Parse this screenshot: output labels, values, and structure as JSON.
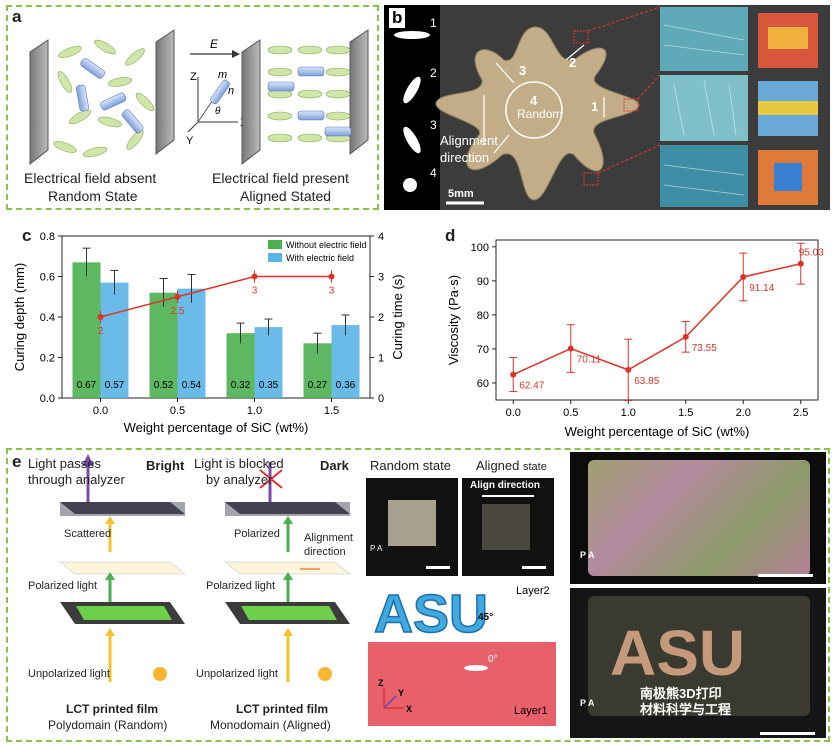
{
  "panel_a": {
    "label": "a",
    "left_caption_1": "Electrical field absent",
    "left_caption_2": "Random State",
    "right_caption_1": "Electrical field present",
    "right_caption_2": "Aligned Stated",
    "field_symbol": "E",
    "axis_z": "Z",
    "axis_x": "X",
    "axis_y": "Y",
    "vec_m": "m",
    "vec_n": "n",
    "theta": "θ"
  },
  "panel_b": {
    "label": "b",
    "shape_nums": [
      "1",
      "2",
      "3",
      "4"
    ],
    "region_1": "1",
    "region_2": "2",
    "region_3": "3",
    "region_4": "4",
    "random": "Random",
    "alignment_1": "Alignment",
    "alignment_2": "direction",
    "scale": "5mm"
  },
  "panel_c": {
    "label": "c",
    "legend_1": "Without electric field",
    "legend_2": "With electric field",
    "ylabel_left": "Curing depth (mm)",
    "ylabel_right": "Curing time (s)",
    "xlabel": "Weight percentage of SiC (wt%)"
  },
  "panel_d": {
    "label": "d",
    "ylabel": "Viscosity (Pa·s)",
    "xlabel": "Weight percentage of SiC (wt%)"
  },
  "panel_e": {
    "label": "e",
    "light_passes_1": "Light passes",
    "light_passes_2": "through analyzer",
    "bright": "Bright",
    "light_blocked_1": "Light is blocked",
    "light_blocked_2": "by analyzer",
    "dark": "Dark",
    "scattered": "Scattered",
    "polarized": "Polarized",
    "alignment_1": "Alignment",
    "alignment_2": "direction",
    "polarized_light_1": "Polarized light",
    "polarized_light_2": "Polarized light",
    "unpolarized_1": "Unpolarized light",
    "unpolarized_2": "Unpolarized light",
    "film_1_title": "LCT printed film",
    "film_1_sub": "Polydomain (Random)",
    "film_2_title": "LCT printed film",
    "film_2_sub": "Monodomain (Aligned)",
    "random_state": "Random state",
    "aligned_state_1": "Aligned",
    "aligned_state_2": "state",
    "align_direction": "Align direction",
    "p": "P",
    "a": "A",
    "asu": "ASU",
    "layer2": "Layer2",
    "layer1": "Layer1",
    "deg45": "45°",
    "deg0": "0°",
    "ax_z": "Z",
    "ax_y": "Y",
    "ax_x": "X",
    "watermark_1": "南极熊3D打印",
    "watermark_2": "材料科学与工程"
  },
  "chart_data": [
    {
      "type": "bar",
      "title": "",
      "categories": [
        "0.0",
        "0.5",
        "1.0",
        "1.5"
      ],
      "series": [
        {
          "name": "Without electric field",
          "values": [
            0.67,
            0.52,
            0.32,
            0.27
          ],
          "errors": [
            0.07,
            0.07,
            0.05,
            0.05
          ],
          "color": "#4caf50"
        },
        {
          "name": "With electric field",
          "values": [
            0.57,
            0.54,
            0.35,
            0.36
          ],
          "errors": [
            0.06,
            0.07,
            0.04,
            0.05
          ],
          "color": "#5ab4e5"
        }
      ],
      "line_series": {
        "name": "Curing time",
        "values": [
          2,
          2.5,
          3,
          3
        ],
        "errors": [
          0.15,
          0.15,
          0.15,
          0.15
        ],
        "color": "#d9352b",
        "axis": "right"
      },
      "xlabel": "Weight percentage of SiC (wt%)",
      "ylabel": "Curing depth (mm)",
      "ylabel_right": "Curing time (s)",
      "ylim": [
        0,
        0.8
      ],
      "yticks": [
        0.0,
        0.2,
        0.4,
        0.6,
        0.8
      ],
      "ylim_right": [
        0,
        4
      ],
      "yticks_right": [
        0,
        1,
        2,
        3,
        4
      ],
      "legend": "top-right",
      "grid": false
    },
    {
      "type": "line",
      "title": "",
      "x": [
        0.0,
        0.5,
        1.0,
        1.5,
        2.0,
        2.5
      ],
      "series": [
        {
          "values": [
            62.47,
            70.11,
            63.85,
            73.55,
            91.14,
            95.03
          ],
          "errors": [
            5,
            7,
            9,
            4.5,
            7,
            6
          ],
          "color": "#d9352b"
        }
      ],
      "xlabel": "Weight percentage of SiC (wt%)",
      "ylabel": "Viscosity (Pa·s)",
      "xlim": [
        -0.15,
        2.65
      ],
      "xticks": [
        0.0,
        0.5,
        1.0,
        1.5,
        2.0,
        2.5
      ],
      "ylim": [
        55,
        102
      ],
      "yticks": [
        60,
        70,
        80,
        90,
        100
      ],
      "grid": false
    }
  ]
}
